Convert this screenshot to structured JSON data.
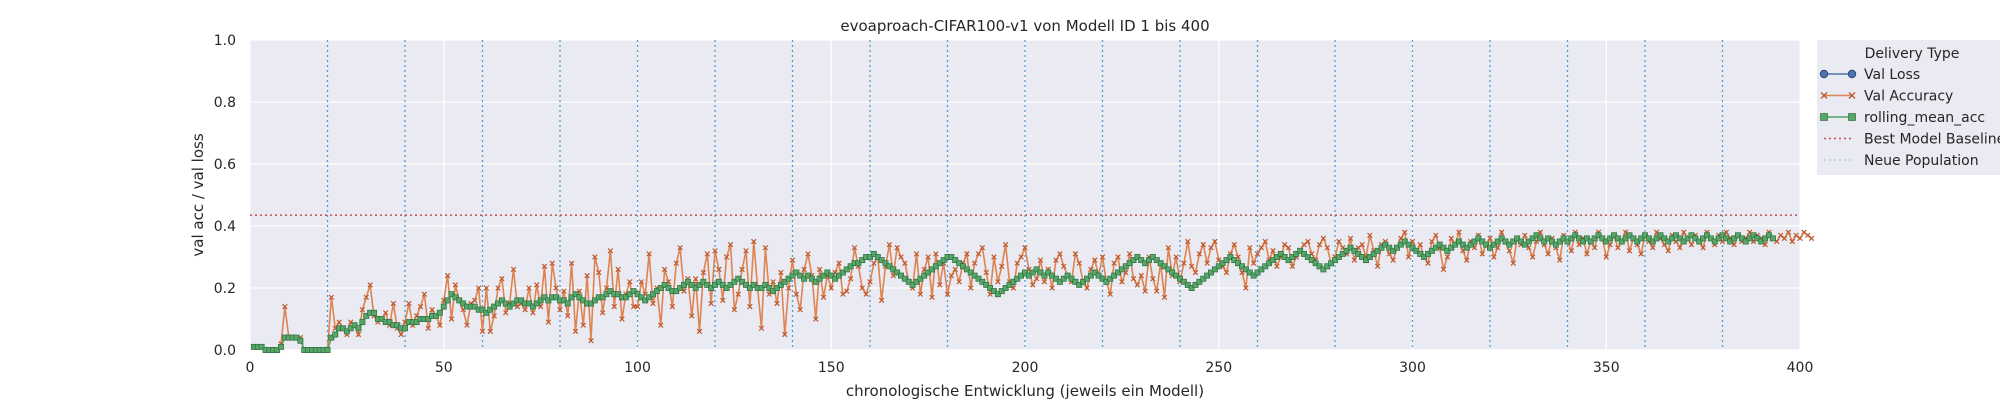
{
  "chart_data": {
    "type": "line",
    "title": "evoaproach-CIFAR100-v1 von Modell ID 1 bis 400",
    "xlabel": "chronologische Entwicklung (jeweils ein Modell)",
    "ylabel": "val acc / val loss",
    "xlim": [
      0,
      400
    ],
    "ylim": [
      0,
      1.0
    ],
    "x_ticks": [
      0,
      50,
      100,
      150,
      200,
      250,
      300,
      350,
      400
    ],
    "y_ticks": [
      0.0,
      0.2,
      0.4,
      0.6,
      0.8,
      1.0
    ],
    "grid": true,
    "legend_position": "outside-right",
    "legend_title": "Delivery Type",
    "baseline": {
      "name": "Best Model Baseline",
      "value": 0.435,
      "color": "#c44e52"
    },
    "population_markers": {
      "name": "Neue Population",
      "x": [
        20,
        40,
        60,
        80,
        100,
        120,
        140,
        160,
        180,
        200,
        220,
        240,
        260,
        280,
        300,
        320,
        340,
        360,
        380
      ],
      "color": "#4c9fd5"
    },
    "series": [
      {
        "name": "Val Loss",
        "color": "#4c72b0",
        "marker": "circle",
        "values": []
      },
      {
        "name": "Val Accuracy",
        "color": "#dd8452",
        "marker": "x",
        "values": [
          0.01,
          0.01,
          0.01,
          0.0,
          0.0,
          0.0,
          0.0,
          0.02,
          0.14,
          0.04,
          0.04,
          0.04,
          0.04,
          0.0,
          0.0,
          0.0,
          0.0,
          0.0,
          0.0,
          0.0,
          0.17,
          0.07,
          0.09,
          0.07,
          0.05,
          0.09,
          0.08,
          0.05,
          0.13,
          0.17,
          0.21,
          0.11,
          0.09,
          0.1,
          0.12,
          0.08,
          0.15,
          0.07,
          0.05,
          0.09,
          0.15,
          0.08,
          0.11,
          0.14,
          0.18,
          0.07,
          0.13,
          0.11,
          0.08,
          0.16,
          0.24,
          0.1,
          0.21,
          0.16,
          0.13,
          0.08,
          0.15,
          0.16,
          0.2,
          0.06,
          0.2,
          0.06,
          0.11,
          0.2,
          0.23,
          0.12,
          0.15,
          0.26,
          0.14,
          0.15,
          0.13,
          0.2,
          0.12,
          0.21,
          0.14,
          0.27,
          0.09,
          0.28,
          0.2,
          0.13,
          0.19,
          0.11,
          0.28,
          0.06,
          0.19,
          0.08,
          0.24,
          0.03,
          0.3,
          0.25,
          0.12,
          0.2,
          0.32,
          0.14,
          0.26,
          0.1,
          0.18,
          0.22,
          0.14,
          0.14,
          0.22,
          0.18,
          0.31,
          0.15,
          0.2,
          0.08,
          0.26,
          0.22,
          0.14,
          0.28,
          0.33,
          0.19,
          0.23,
          0.11,
          0.23,
          0.06,
          0.25,
          0.31,
          0.15,
          0.32,
          0.26,
          0.16,
          0.3,
          0.34,
          0.13,
          0.18,
          0.26,
          0.32,
          0.14,
          0.35,
          0.2,
          0.07,
          0.33,
          0.18,
          0.22,
          0.15,
          0.25,
          0.05,
          0.2,
          0.29,
          0.18,
          0.13,
          0.26,
          0.31,
          0.24,
          0.1,
          0.26,
          0.17,
          0.24,
          0.2,
          0.25,
          0.28,
          0.18,
          0.19,
          0.23,
          0.33,
          0.27,
          0.2,
          0.18,
          0.22,
          0.28,
          0.3,
          0.16,
          0.27,
          0.34,
          0.24,
          0.33,
          0.3,
          0.28,
          0.22,
          0.2,
          0.31,
          0.18,
          0.26,
          0.3,
          0.17,
          0.31,
          0.21,
          0.28,
          0.18,
          0.24,
          0.26,
          0.22,
          0.28,
          0.31,
          0.2,
          0.28,
          0.31,
          0.33,
          0.25,
          0.18,
          0.3,
          0.22,
          0.27,
          0.34,
          0.22,
          0.2,
          0.28,
          0.3,
          0.33,
          0.26,
          0.21,
          0.23,
          0.29,
          0.22,
          0.26,
          0.2,
          0.29,
          0.31,
          0.27,
          0.24,
          0.22,
          0.31,
          0.28,
          0.22,
          0.2,
          0.26,
          0.29,
          0.24,
          0.3,
          0.22,
          0.18,
          0.28,
          0.3,
          0.22,
          0.25,
          0.31,
          0.23,
          0.21,
          0.24,
          0.19,
          0.3,
          0.23,
          0.19,
          0.28,
          0.17,
          0.33,
          0.24,
          0.3,
          0.22,
          0.28,
          0.35,
          0.27,
          0.25,
          0.31,
          0.34,
          0.28,
          0.33,
          0.35,
          0.29,
          0.27,
          0.25,
          0.31,
          0.34,
          0.3,
          0.25,
          0.2,
          0.33,
          0.28,
          0.31,
          0.33,
          0.35,
          0.29,
          0.32,
          0.27,
          0.3,
          0.34,
          0.33,
          0.27,
          0.3,
          0.32,
          0.34,
          0.35,
          0.31,
          0.29,
          0.34,
          0.36,
          0.33,
          0.28,
          0.3,
          0.35,
          0.33,
          0.31,
          0.36,
          0.29,
          0.33,
          0.34,
          0.3,
          0.37,
          0.32,
          0.27,
          0.34,
          0.35,
          0.31,
          0.29,
          0.33,
          0.36,
          0.38,
          0.3,
          0.35,
          0.32,
          0.34,
          0.3,
          0.28,
          0.35,
          0.37,
          0.33,
          0.26,
          0.3,
          0.36,
          0.34,
          0.38,
          0.32,
          0.29,
          0.35,
          0.33,
          0.37,
          0.31,
          0.34,
          0.36,
          0.3,
          0.33,
          0.38,
          0.35,
          0.32,
          0.28,
          0.36,
          0.34,
          0.37,
          0.33,
          0.3,
          0.35,
          0.38,
          0.34,
          0.31,
          0.36,
          0.33,
          0.29,
          0.37,
          0.35,
          0.32,
          0.38,
          0.34,
          0.36,
          0.31,
          0.35,
          0.33,
          0.38,
          0.36,
          0.3,
          0.34,
          0.37,
          0.33,
          0.35,
          0.38,
          0.32,
          0.36,
          0.34,
          0.31,
          0.37,
          0.35,
          0.33,
          0.38,
          0.36,
          0.34,
          0.32,
          0.37,
          0.35,
          0.33,
          0.38,
          0.36,
          0.34,
          0.37,
          0.35,
          0.33,
          0.38,
          0.36,
          0.34,
          0.37,
          0.35,
          0.38,
          0.36,
          0.34,
          0.37,
          0.35,
          0.36,
          0.38,
          0.35,
          0.37,
          0.36,
          0.34,
          0.38,
          0.36,
          0.35,
          0.37,
          0.36,
          0.38,
          0.35,
          0.37,
          0.36,
          0.38,
          0.37,
          0.36
        ]
      },
      {
        "name": "rolling_mean_acc",
        "color": "#55a868",
        "marker": "square",
        "values": [
          0.01,
          0.01,
          0.01,
          0.0,
          0.0,
          0.0,
          0.0,
          0.01,
          0.04,
          0.04,
          0.04,
          0.04,
          0.03,
          0.0,
          0.0,
          0.0,
          0.0,
          0.0,
          0.0,
          0.0,
          0.04,
          0.05,
          0.07,
          0.07,
          0.06,
          0.07,
          0.08,
          0.07,
          0.09,
          0.11,
          0.12,
          0.12,
          0.1,
          0.1,
          0.09,
          0.09,
          0.08,
          0.08,
          0.07,
          0.07,
          0.09,
          0.09,
          0.09,
          0.1,
          0.1,
          0.1,
          0.11,
          0.11,
          0.12,
          0.14,
          0.16,
          0.18,
          0.17,
          0.16,
          0.15,
          0.14,
          0.14,
          0.14,
          0.13,
          0.13,
          0.12,
          0.13,
          0.14,
          0.15,
          0.16,
          0.15,
          0.14,
          0.15,
          0.16,
          0.16,
          0.15,
          0.15,
          0.14,
          0.15,
          0.16,
          0.17,
          0.16,
          0.17,
          0.17,
          0.16,
          0.16,
          0.15,
          0.17,
          0.18,
          0.17,
          0.16,
          0.15,
          0.15,
          0.16,
          0.17,
          0.17,
          0.18,
          0.19,
          0.18,
          0.18,
          0.17,
          0.17,
          0.18,
          0.19,
          0.18,
          0.17,
          0.16,
          0.17,
          0.18,
          0.19,
          0.2,
          0.21,
          0.2,
          0.19,
          0.19,
          0.2,
          0.21,
          0.22,
          0.21,
          0.2,
          0.21,
          0.22,
          0.21,
          0.2,
          0.21,
          0.22,
          0.21,
          0.2,
          0.21,
          0.22,
          0.23,
          0.22,
          0.21,
          0.2,
          0.21,
          0.2,
          0.2,
          0.21,
          0.2,
          0.19,
          0.2,
          0.21,
          0.22,
          0.23,
          0.24,
          0.25,
          0.24,
          0.23,
          0.24,
          0.23,
          0.22,
          0.23,
          0.24,
          0.25,
          0.24,
          0.23,
          0.24,
          0.25,
          0.26,
          0.27,
          0.28,
          0.28,
          0.29,
          0.3,
          0.3,
          0.31,
          0.3,
          0.29,
          0.28,
          0.27,
          0.26,
          0.25,
          0.24,
          0.23,
          0.22,
          0.21,
          0.22,
          0.23,
          0.24,
          0.25,
          0.26,
          0.27,
          0.28,
          0.29,
          0.3,
          0.3,
          0.29,
          0.28,
          0.27,
          0.26,
          0.25,
          0.24,
          0.23,
          0.22,
          0.21,
          0.2,
          0.19,
          0.18,
          0.19,
          0.2,
          0.21,
          0.22,
          0.23,
          0.24,
          0.25,
          0.24,
          0.25,
          0.26,
          0.25,
          0.24,
          0.25,
          0.24,
          0.23,
          0.22,
          0.23,
          0.24,
          0.23,
          0.22,
          0.21,
          0.22,
          0.23,
          0.24,
          0.25,
          0.24,
          0.23,
          0.22,
          0.23,
          0.24,
          0.25,
          0.26,
          0.27,
          0.28,
          0.29,
          0.3,
          0.29,
          0.28,
          0.29,
          0.3,
          0.29,
          0.28,
          0.27,
          0.26,
          0.25,
          0.24,
          0.23,
          0.22,
          0.21,
          0.2,
          0.21,
          0.22,
          0.23,
          0.24,
          0.25,
          0.26,
          0.27,
          0.28,
          0.29,
          0.3,
          0.29,
          0.28,
          0.27,
          0.26,
          0.25,
          0.24,
          0.25,
          0.26,
          0.27,
          0.28,
          0.29,
          0.3,
          0.31,
          0.3,
          0.29,
          0.3,
          0.31,
          0.32,
          0.31,
          0.3,
          0.29,
          0.28,
          0.27,
          0.26,
          0.27,
          0.28,
          0.29,
          0.3,
          0.31,
          0.32,
          0.33,
          0.32,
          0.31,
          0.3,
          0.29,
          0.3,
          0.31,
          0.32,
          0.33,
          0.34,
          0.33,
          0.32,
          0.33,
          0.34,
          0.35,
          0.34,
          0.33,
          0.32,
          0.31,
          0.3,
          0.31,
          0.32,
          0.33,
          0.34,
          0.33,
          0.32,
          0.33,
          0.34,
          0.35,
          0.34,
          0.33,
          0.34,
          0.35,
          0.36,
          0.35,
          0.34,
          0.33,
          0.34,
          0.35,
          0.36,
          0.35,
          0.34,
          0.35,
          0.36,
          0.35,
          0.34,
          0.35,
          0.36,
          0.37,
          0.36,
          0.35,
          0.36,
          0.35,
          0.34,
          0.35,
          0.36,
          0.35,
          0.36,
          0.37,
          0.36,
          0.35,
          0.36,
          0.35,
          0.36,
          0.37,
          0.36,
          0.35,
          0.36,
          0.37,
          0.36,
          0.35,
          0.36,
          0.37,
          0.36,
          0.35,
          0.36,
          0.37,
          0.36,
          0.35,
          0.36,
          0.37,
          0.36,
          0.35,
          0.36,
          0.37,
          0.36,
          0.35,
          0.36,
          0.37,
          0.36,
          0.35,
          0.36,
          0.37,
          0.36,
          0.35,
          0.36,
          0.37,
          0.36,
          0.35,
          0.36,
          0.37,
          0.36,
          0.35,
          0.36,
          0.37,
          0.36,
          0.35,
          0.36,
          0.37,
          0.36
        ]
      }
    ]
  }
}
